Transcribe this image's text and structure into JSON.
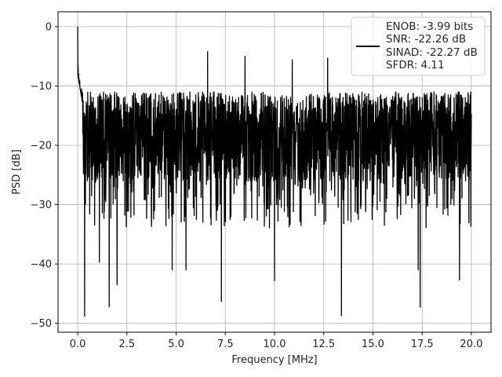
{
  "chart_data": {
    "type": "line",
    "xlabel": "Frequency [MHz]",
    "ylabel": "PSD [dB]",
    "xlim": [
      -1.0,
      21.0
    ],
    "ylim": [
      -51.5,
      2.5
    ],
    "x_ticks": [
      0.0,
      2.5,
      5.0,
      7.5,
      10.0,
      12.5,
      15.0,
      17.5,
      20.0
    ],
    "x_tick_labels": [
      "0.0",
      "2.5",
      "5.0",
      "7.5",
      "10.0",
      "12.5",
      "15.0",
      "17.5",
      "20.0"
    ],
    "y_ticks": [
      0,
      -10,
      -20,
      -30,
      -40,
      -50
    ],
    "y_tick_labels": [
      "0",
      "−10",
      "−20",
      "−30",
      "−40",
      "−50"
    ],
    "grid": true,
    "legend_position": "top-right",
    "legend": {
      "lines": [
        "ENOB: -3.99 bits",
        "SNR: -22.26 dB",
        "SINAD: -22.27 dB",
        "SFDR: 4.11"
      ]
    },
    "series": [
      {
        "color": "#000000",
        "x_range": [
          0.0,
          20.0
        ],
        "noise_floor_mean_db": -18.5,
        "peak_envelope_db": -10.0,
        "peaks": [
          {
            "x": 0.0,
            "y": 0.0
          },
          {
            "x": 0.02,
            "y": -6.5
          },
          {
            "x": 0.05,
            "y": -8.0
          },
          {
            "x": 0.1,
            "y": -9.0
          },
          {
            "x": 0.2,
            "y": -10.5
          },
          {
            "x": 6.6,
            "y": -4.2
          },
          {
            "x": 8.5,
            "y": -5.0
          },
          {
            "x": 10.9,
            "y": -5.6
          },
          {
            "x": 12.7,
            "y": -5.3
          }
        ],
        "deep_dips": [
          {
            "x": 0.35,
            "y": -48.8
          },
          {
            "x": 1.6,
            "y": -47.2
          },
          {
            "x": 2.0,
            "y": -43.5
          },
          {
            "x": 1.1,
            "y": -39.7
          },
          {
            "x": 4.8,
            "y": -41.0
          },
          {
            "x": 5.5,
            "y": -41.0
          },
          {
            "x": 7.3,
            "y": -46.3
          },
          {
            "x": 10.0,
            "y": -42.8
          },
          {
            "x": 13.4,
            "y": -48.7
          },
          {
            "x": 17.4,
            "y": -47.3
          },
          {
            "x": 17.3,
            "y": -41.0
          },
          {
            "x": 19.4,
            "y": -42.7
          }
        ]
      }
    ]
  }
}
